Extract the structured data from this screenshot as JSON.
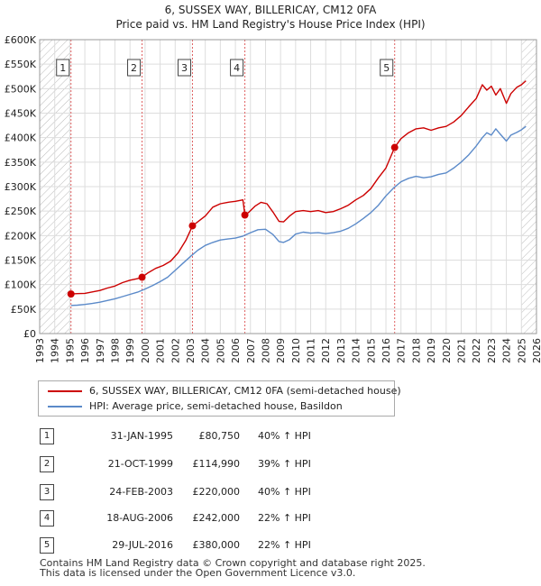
{
  "title": {
    "line1": "6, SUSSEX WAY, BILLERICAY, CM12 0FA",
    "line2": "Price paid vs. HM Land Registry's House Price Index (HPI)"
  },
  "colors": {
    "property_line": "#cc0000",
    "hpi_line": "#5b8ac9",
    "marker": "#cc0000",
    "vline": "#e06060",
    "grid": "#dddddd",
    "hatch": "#bbbbbb"
  },
  "chart_data": {
    "type": "line",
    "xlim": [
      1993,
      2026
    ],
    "ylim": [
      0,
      600000
    ],
    "x_ticks": [
      "1993",
      "1994",
      "1995",
      "1996",
      "1997",
      "1998",
      "1999",
      "2000",
      "2001",
      "2002",
      "2003",
      "2004",
      "2005",
      "2006",
      "2007",
      "2008",
      "2009",
      "2010",
      "2011",
      "2012",
      "2013",
      "2014",
      "2015",
      "2016",
      "2017",
      "2018",
      "2019",
      "2020",
      "2021",
      "2022",
      "2023",
      "2024",
      "2025",
      "2026"
    ],
    "y_ticks": [
      {
        "value": 0,
        "label": "£0"
      },
      {
        "value": 50000,
        "label": "£50K"
      },
      {
        "value": 100000,
        "label": "£100K"
      },
      {
        "value": 150000,
        "label": "£150K"
      },
      {
        "value": 200000,
        "label": "£200K"
      },
      {
        "value": 250000,
        "label": "£250K"
      },
      {
        "value": 300000,
        "label": "£300K"
      },
      {
        "value": 350000,
        "label": "£350K"
      },
      {
        "value": 400000,
        "label": "£400K"
      },
      {
        "value": 450000,
        "label": "£450K"
      },
      {
        "value": 500000,
        "label": "£500K"
      },
      {
        "value": 550000,
        "label": "£550K"
      },
      {
        "value": 600000,
        "label": "£600K"
      }
    ],
    "shaded_before": 1995.0,
    "shaded_after": 2025.0,
    "series": [
      {
        "name": "6, SUSSEX WAY, BILLERICAY, CM12 0FA (semi-detached house)",
        "x": [
          1995.08,
          1995.5,
          1996,
          1996.5,
          1997,
          1997.5,
          1998,
          1998.5,
          1999,
          1999.5,
          1999.8,
          2000.2,
          2000.7,
          2001.2,
          2001.7,
          2002.2,
          2002.7,
          2003.15,
          2003.5,
          2004,
          2004.5,
          2005,
          2005.5,
          2006,
          2006.5,
          2006.63,
          2006.9,
          2007.3,
          2007.7,
          2008.1,
          2008.5,
          2008.9,
          2009.2,
          2009.6,
          2010,
          2010.5,
          2011,
          2011.5,
          2012,
          2012.5,
          2013,
          2013.5,
          2014,
          2014.5,
          2015,
          2015.5,
          2016,
          2016.58,
          2017,
          2017.5,
          2018,
          2018.5,
          2019,
          2019.5,
          2020,
          2020.5,
          2021,
          2021.5,
          2022,
          2022.4,
          2022.7,
          2023,
          2023.3,
          2023.6,
          2024,
          2024.3,
          2024.7,
          2025.0,
          2025.3
        ],
        "values": [
          80750,
          81500,
          82000,
          85000,
          88000,
          93000,
          97000,
          104000,
          109000,
          112000,
          114990,
          124000,
          133000,
          139000,
          148000,
          165000,
          190000,
          220000,
          228000,
          240000,
          258000,
          265000,
          268000,
          270000,
          273000,
          242000,
          248000,
          260000,
          268000,
          265000,
          248000,
          229000,
          228000,
          240000,
          249000,
          251000,
          249000,
          251000,
          247000,
          249000,
          255000,
          262000,
          273000,
          282000,
          296000,
          318000,
          338000,
          380000,
          398000,
          410000,
          418000,
          420000,
          415000,
          420000,
          423000,
          432000,
          445000,
          463000,
          480000,
          508000,
          497000,
          505000,
          487000,
          500000,
          470000,
          490000,
          503000,
          508000,
          516000
        ]
      },
      {
        "name": "HPI: Average price, semi-detached house, Basildon",
        "x": [
          1995.08,
          1995.5,
          1996,
          1996.5,
          1997,
          1997.5,
          1998,
          1998.5,
          1999,
          1999.5,
          2000,
          2000.5,
          2001,
          2001.5,
          2002,
          2002.5,
          2003,
          2003.5,
          2004,
          2004.5,
          2005,
          2005.5,
          2006,
          2006.5,
          2007,
          2007.5,
          2008,
          2008.5,
          2008.9,
          2009.2,
          2009.6,
          2010,
          2010.5,
          2011,
          2011.5,
          2012,
          2012.5,
          2013,
          2013.5,
          2014,
          2014.5,
          2015,
          2015.5,
          2016,
          2016.5,
          2017,
          2017.5,
          2018,
          2018.5,
          2019,
          2019.5,
          2020,
          2020.5,
          2021,
          2021.5,
          2022,
          2022.4,
          2022.7,
          2023,
          2023.3,
          2023.6,
          2024,
          2024.3,
          2024.7,
          2025.0,
          2025.3
        ],
        "values": [
          57500,
          58000,
          59500,
          61500,
          64000,
          67500,
          71000,
          75500,
          80000,
          84500,
          91000,
          98000,
          106000,
          115000,
          129000,
          143000,
          157000,
          170000,
          180000,
          186000,
          191000,
          193000,
          195000,
          199000,
          206000,
          212000,
          213000,
          202000,
          188000,
          186000,
          192000,
          203000,
          207000,
          205000,
          206000,
          204000,
          206000,
          209000,
          215000,
          224000,
          235000,
          247000,
          262000,
          281000,
          297000,
          310000,
          317000,
          321000,
          318000,
          320000,
          325000,
          328000,
          338000,
          350000,
          365000,
          383000,
          400000,
          410000,
          405000,
          418000,
          407000,
          393000,
          405000,
          411000,
          416000,
          423000
        ]
      }
    ],
    "sales": [
      {
        "id": "1",
        "x": 1995.08,
        "value": 80750
      },
      {
        "id": "2",
        "x": 1999.8,
        "value": 114990
      },
      {
        "id": "3",
        "x": 2003.15,
        "value": 220000
      },
      {
        "id": "4",
        "x": 2006.63,
        "value": 242000
      },
      {
        "id": "5",
        "x": 2016.58,
        "value": 380000
      }
    ]
  },
  "legend": {
    "property": "6, SUSSEX WAY, BILLERICAY, CM12 0FA (semi-detached house)",
    "hpi": "HPI: Average price, semi-detached house, Basildon"
  },
  "table": [
    {
      "num": "1",
      "date": "31-JAN-1995",
      "price": "£80,750",
      "hpi": "40% ↑ HPI"
    },
    {
      "num": "2",
      "date": "21-OCT-1999",
      "price": "£114,990",
      "hpi": "39% ↑ HPI"
    },
    {
      "num": "3",
      "date": "24-FEB-2003",
      "price": "£220,000",
      "hpi": "40% ↑ HPI"
    },
    {
      "num": "4",
      "date": "18-AUG-2006",
      "price": "£242,000",
      "hpi": "22% ↑ HPI"
    },
    {
      "num": "5",
      "date": "29-JUL-2016",
      "price": "£380,000",
      "hpi": "22% ↑ HPI"
    }
  ],
  "footer": {
    "line1": "Contains HM Land Registry data © Crown copyright and database right 2025.",
    "line2": "This data is licensed under the Open Government Licence v3.0."
  }
}
